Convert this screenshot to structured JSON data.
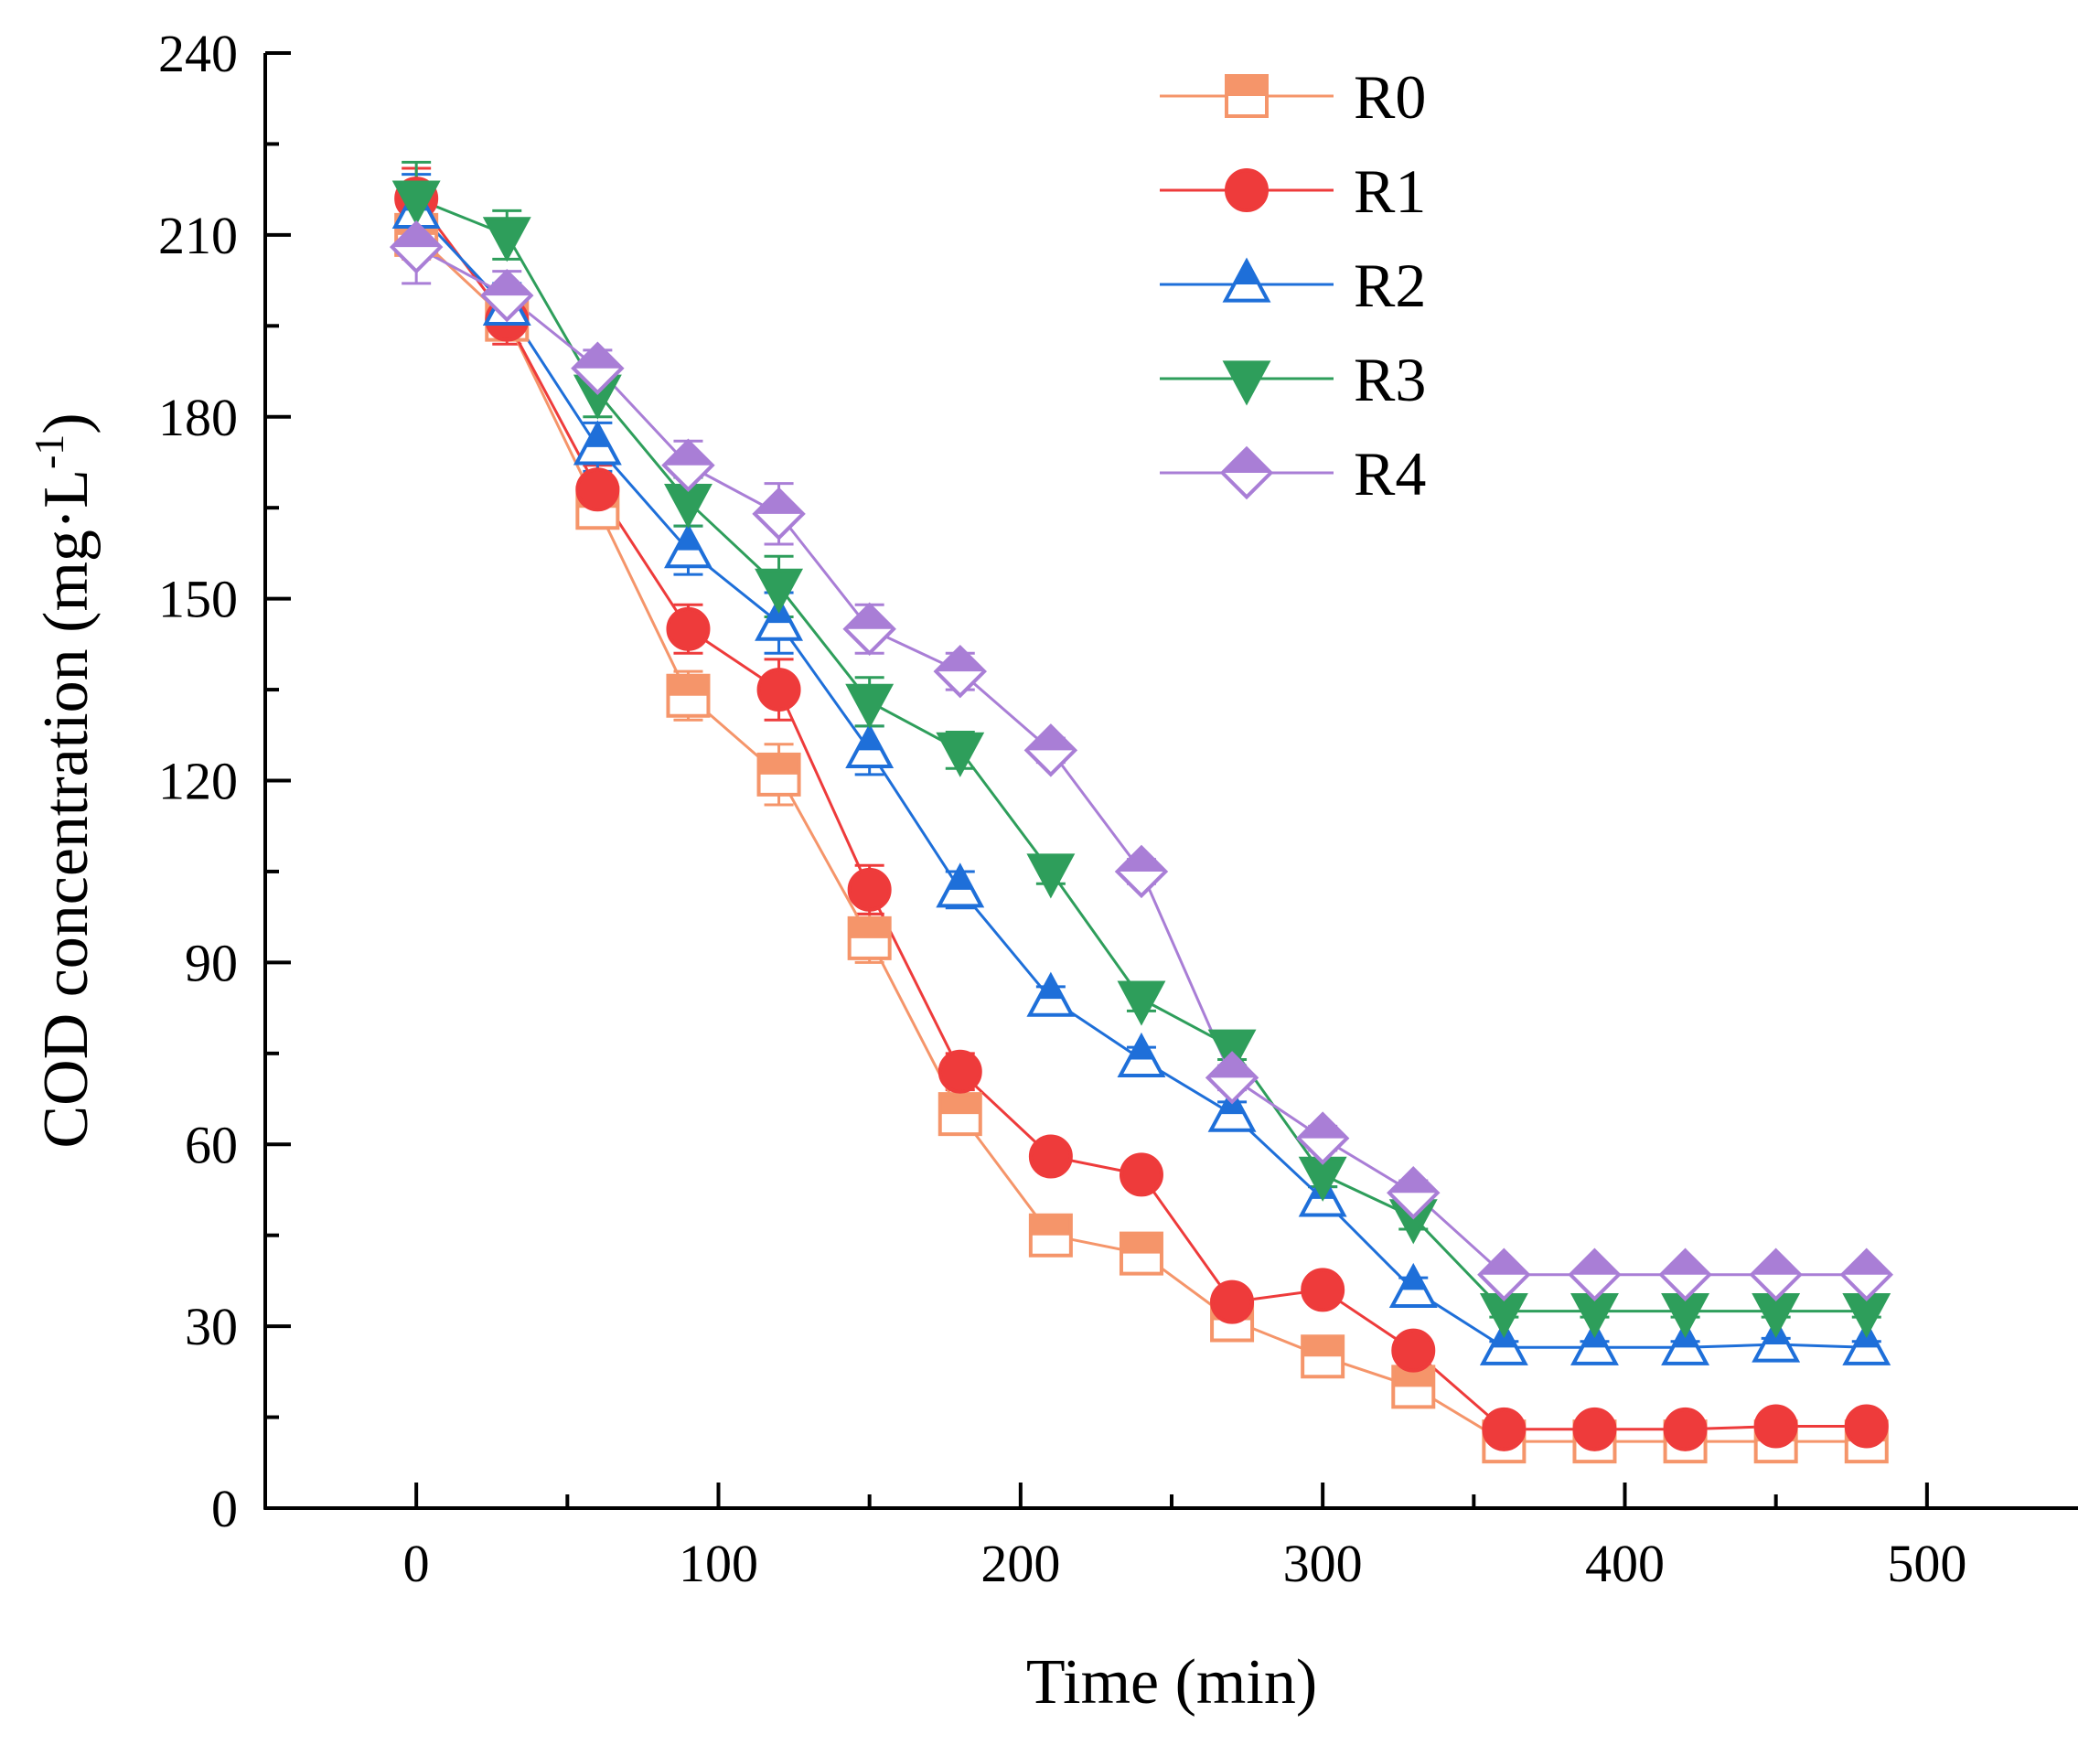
{
  "chart_data": {
    "type": "line",
    "title": "",
    "xlabel": "Time (min)",
    "ylabel": "COD concentration (mg·L",
    "ylabel_sup": "-1",
    "ylabel_close": ")",
    "xlim": [
      -50,
      550
    ],
    "ylim": [
      0,
      240
    ],
    "xticks": [
      0,
      100,
      200,
      300,
      400,
      500
    ],
    "yticks": [
      0,
      30,
      60,
      90,
      120,
      150,
      180,
      210,
      240
    ],
    "xtick_labels": [
      "0",
      "100",
      "200",
      "300",
      "400",
      "500"
    ],
    "ytick_labels": [
      "0",
      "30",
      "60",
      "90",
      "120",
      "150",
      "180",
      "210",
      "240"
    ],
    "legend_position": "top-right",
    "grid": false,
    "x": [
      0,
      30,
      60,
      90,
      120,
      150,
      180,
      210,
      240,
      270,
      300,
      330,
      360,
      390,
      420,
      450,
      480
    ],
    "series": [
      {
        "name": "R0",
        "marker": "square",
        "color": "#f5956a",
        "values": [
          210,
          196,
          165,
          134,
          121,
          94,
          65,
          45,
          42,
          31,
          25,
          20,
          11,
          11,
          11,
          11,
          11
        ],
        "errors": [
          4,
          3,
          3,
          4,
          5,
          4,
          3,
          2,
          2,
          2,
          2,
          2,
          1,
          1,
          1,
          1,
          1
        ]
      },
      {
        "name": "R1",
        "marker": "circle",
        "color": "#ee3b3b",
        "values": [
          216,
          196,
          168,
          145,
          135,
          102,
          72,
          58,
          55,
          34,
          36,
          26,
          13,
          13,
          13,
          13.5,
          13.5
        ],
        "errors": [
          5,
          4,
          4,
          4,
          5,
          4,
          3,
          2,
          2,
          2,
          2,
          2,
          1,
          1,
          1,
          1,
          1
        ]
      },
      {
        "name": "R2",
        "marker": "triangle-up",
        "color": "#1e6fd9",
        "values": [
          214,
          198,
          175,
          158,
          146,
          125,
          102,
          84,
          74,
          65,
          51,
          36,
          26.5,
          26.5,
          26.5,
          27,
          26.5
        ],
        "errors": [
          6,
          4,
          4,
          4,
          5,
          4,
          3,
          2,
          2,
          2,
          2,
          2,
          1,
          1,
          1,
          1,
          1
        ]
      },
      {
        "name": "R3",
        "marker": "triangle-down",
        "color": "#2e9e5b",
        "values": [
          216,
          210,
          184,
          166,
          152,
          133,
          125,
          105,
          84,
          76,
          55,
          48,
          32.5,
          32.5,
          32.5,
          32.5,
          32.5
        ],
        "errors": [
          6,
          4,
          4,
          4,
          5,
          4,
          3,
          2,
          2,
          2,
          2,
          2,
          1,
          1,
          1,
          1,
          1
        ]
      },
      {
        "name": "R4",
        "marker": "diamond",
        "color": "#a97ed6",
        "values": [
          208,
          200,
          188,
          172,
          164,
          145,
          138,
          125,
          105,
          71,
          61,
          52,
          38.5,
          38.5,
          38.5,
          38.5,
          38.5
        ],
        "errors": [
          6,
          4,
          3,
          4,
          5,
          4,
          3,
          2,
          2,
          2,
          2,
          2,
          1,
          1,
          1,
          1,
          1
        ]
      }
    ]
  }
}
